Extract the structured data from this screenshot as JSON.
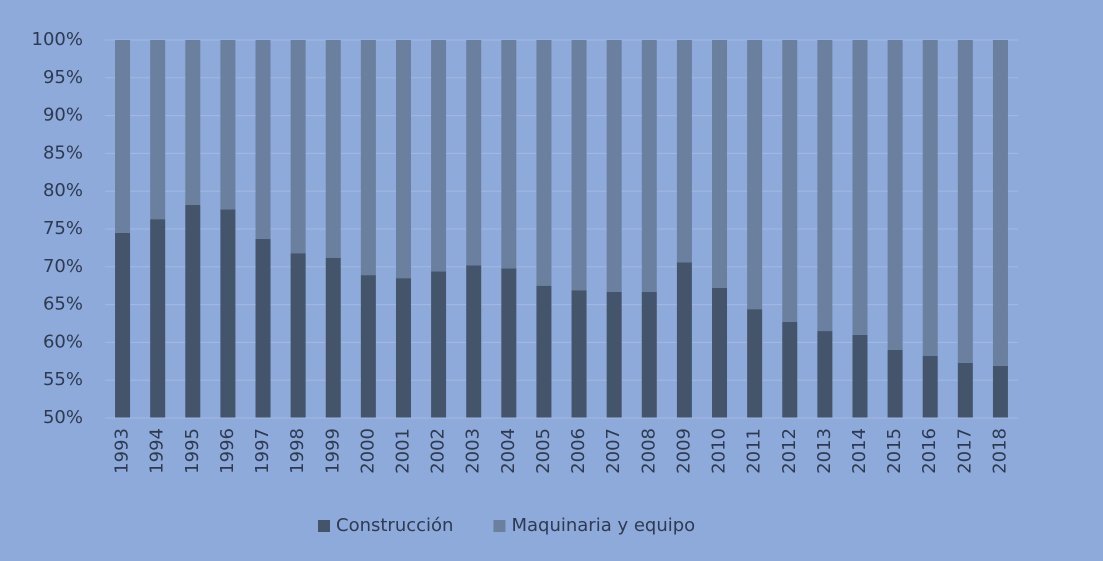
{
  "chart_data": {
    "type": "stacked_bar_100",
    "categories": [
      "1993",
      "1994",
      "1995",
      "1996",
      "1997",
      "1998",
      "1999",
      "2000",
      "2001",
      "2002",
      "2003",
      "2004",
      "2005",
      "2006",
      "2007",
      "2008",
      "2009",
      "2010",
      "2011",
      "2012",
      "2013",
      "2014",
      "2015",
      "2016",
      "2017",
      "2018"
    ],
    "series": [
      {
        "name": "Construcción",
        "color": "#44546a",
        "values": [
          74.5,
          76.3,
          78.2,
          77.6,
          73.7,
          71.8,
          71.2,
          68.9,
          68.5,
          69.4,
          70.2,
          69.8,
          67.5,
          66.9,
          66.7,
          66.7,
          70.6,
          67.2,
          64.4,
          62.7,
          61.5,
          61.0,
          59.0,
          58.2,
          57.3,
          56.9
        ]
      },
      {
        "name": "Maquinaria y equipo",
        "color": "#6b7f9f",
        "values": [
          25.5,
          23.7,
          21.8,
          22.4,
          26.3,
          28.2,
          28.8,
          31.1,
          31.5,
          30.6,
          29.8,
          30.2,
          32.5,
          33.1,
          33.3,
          33.3,
          29.4,
          32.8,
          35.6,
          37.3,
          38.5,
          39.0,
          41.0,
          41.8,
          42.7,
          43.1
        ]
      }
    ],
    "ylim": [
      50,
      100
    ],
    "yticks": [
      {
        "value": 50,
        "label": "50%"
      },
      {
        "value": 55,
        "label": "55%"
      },
      {
        "value": 60,
        "label": "60%"
      },
      {
        "value": 65,
        "label": "65%"
      },
      {
        "value": 70,
        "label": "70%"
      },
      {
        "value": 75,
        "label": "75%"
      },
      {
        "value": 80,
        "label": "80%"
      },
      {
        "value": 85,
        "label": "85%"
      },
      {
        "value": 90,
        "label": "90%"
      },
      {
        "value": 95,
        "label": "95%"
      },
      {
        "value": 100,
        "label": "100%"
      }
    ],
    "grid": true,
    "legend": "bottom"
  }
}
